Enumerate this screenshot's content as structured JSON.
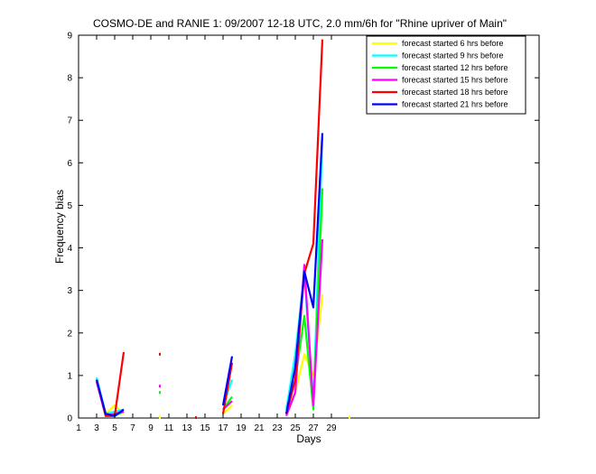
{
  "chart_data": {
    "type": "line",
    "title": "COSMO-DE and RANIE 1: 09/2007 12-18 UTC, 2.0 mm/6h for \"Rhine upriver of Main\"",
    "xlabel": "Days",
    "ylabel": "Frequency bias",
    "xlim": [
      1,
      52
    ],
    "ylim": [
      0,
      9
    ],
    "xticks": [
      1,
      3,
      5,
      7,
      9,
      11,
      13,
      15,
      17,
      19,
      21,
      23,
      25,
      27,
      29
    ],
    "yticks": [
      0,
      1,
      2,
      3,
      4,
      5,
      6,
      7,
      8,
      9
    ],
    "legend_position": "top-right",
    "grid": false,
    "series": [
      {
        "name": "forecast started 6 hrs before",
        "color": "#ffff00",
        "points": [
          [
            3,
            0.9
          ],
          [
            4,
            0.1
          ],
          [
            5,
            0.3
          ],
          [
            6,
            0.1
          ],
          [
            10,
            0.02
          ],
          [
            17,
            0.1
          ],
          [
            18,
            0.3
          ],
          [
            24,
            0.1
          ],
          [
            25,
            0.6
          ],
          [
            26,
            1.5
          ],
          [
            27,
            1.0
          ],
          [
            28,
            2.9
          ],
          [
            31,
            0.02
          ]
        ]
      },
      {
        "name": "forecast started 9 hrs before",
        "color": "#00ffff",
        "points": [
          [
            3,
            0.95
          ],
          [
            4,
            0.1
          ],
          [
            5,
            0.15
          ],
          [
            6,
            0.2
          ],
          [
            10,
            0.6
          ],
          [
            17,
            0.3
          ],
          [
            18,
            0.9
          ],
          [
            24,
            0.2
          ],
          [
            25,
            1.5
          ],
          [
            26,
            3.4
          ],
          [
            27,
            0.3
          ],
          [
            28,
            6.6
          ]
        ]
      },
      {
        "name": "forecast started 12 hrs before",
        "color": "#00ff00",
        "points": [
          [
            3,
            0.9
          ],
          [
            4,
            0.05
          ],
          [
            5,
            0.05
          ],
          [
            6,
            0.15
          ],
          [
            10,
            0.6
          ],
          [
            17,
            0.2
          ],
          [
            18,
            0.5
          ],
          [
            24,
            0.1
          ],
          [
            25,
            0.9
          ],
          [
            26,
            2.4
          ],
          [
            27,
            0.2
          ],
          [
            28,
            5.4
          ]
        ]
      },
      {
        "name": "forecast started 15 hrs before",
        "color": "#ff00ff",
        "points": [
          [
            3,
            0.85
          ],
          [
            4,
            0.05
          ],
          [
            5,
            0.1
          ],
          [
            6,
            0.15
          ],
          [
            10,
            0.75
          ],
          [
            17,
            0.2
          ],
          [
            18,
            0.4
          ],
          [
            24,
            0.05
          ],
          [
            25,
            0.6
          ],
          [
            26,
            3.6
          ],
          [
            27,
            0.3
          ],
          [
            28,
            4.2
          ]
        ]
      },
      {
        "name": "forecast started 18 hrs before",
        "color": "#ff0000",
        "points": [
          [
            3,
            0.9
          ],
          [
            4,
            0.05
          ],
          [
            5,
            0.05
          ],
          [
            6,
            1.55
          ],
          [
            10,
            1.5
          ],
          [
            14,
            0.01
          ],
          [
            17,
            0.1
          ],
          [
            18,
            1.3
          ],
          [
            24,
            0.1
          ],
          [
            25,
            0.9
          ],
          [
            26,
            3.4
          ],
          [
            27,
            4.1
          ],
          [
            28,
            8.9
          ]
        ]
      },
      {
        "name": "forecast started 21 hrs before",
        "color": "#0000ff",
        "points": [
          [
            3,
            0.9
          ],
          [
            4,
            0.1
          ],
          [
            5,
            0.05
          ],
          [
            6,
            0.2
          ],
          [
            17,
            0.3
          ],
          [
            18,
            1.45
          ],
          [
            24,
            0.1
          ],
          [
            25,
            1.2
          ],
          [
            26,
            3.45
          ],
          [
            27,
            2.6
          ],
          [
            28,
            6.7
          ]
        ]
      }
    ]
  }
}
